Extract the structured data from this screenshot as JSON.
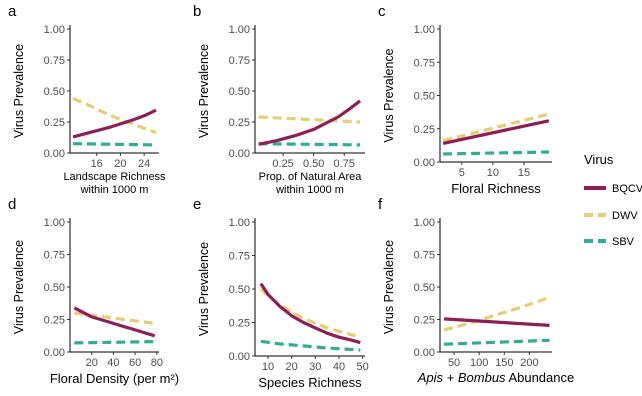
{
  "legend": {
    "title": "Virus",
    "items": [
      {
        "label": "BQCV",
        "color": "#8E1F56",
        "style": "solid"
      },
      {
        "label": "DWV",
        "color": "#E5CF72",
        "style": "dashed"
      },
      {
        "label": "SBV",
        "color": "#2FAE94",
        "style": "dashed"
      }
    ]
  },
  "chart_data": [
    {
      "type": "line",
      "panel": "a",
      "ylabel": "Virus Prevalence",
      "xlabel": [
        "Landscape Richness",
        "within 1000 m"
      ],
      "xlim": [
        11.5,
        26.5
      ],
      "xticks": [
        16,
        20,
        24
      ],
      "ylim": [
        0,
        1
      ],
      "yticks": [
        0.0,
        0.25,
        0.5,
        0.75,
        1.0
      ],
      "ytick_labels": [
        "0.00",
        "0.25",
        "0.50",
        "0.75",
        "1.00"
      ],
      "series": [
        {
          "name": "BQCV",
          "x": [
            12,
            14,
            16,
            18,
            20,
            22,
            24,
            26
          ],
          "y": [
            0.13,
            0.155,
            0.18,
            0.205,
            0.235,
            0.265,
            0.3,
            0.345
          ]
        },
        {
          "name": "DWV",
          "x": [
            12,
            14,
            16,
            18,
            20,
            22,
            24,
            26
          ],
          "y": [
            0.44,
            0.4,
            0.355,
            0.31,
            0.27,
            0.235,
            0.2,
            0.165
          ]
        },
        {
          "name": "SBV",
          "x": [
            12,
            26
          ],
          "y": [
            0.075,
            0.065
          ]
        }
      ]
    },
    {
      "type": "line",
      "panel": "b",
      "ylabel": "Virus Prevalence",
      "xlabel": [
        "Prop. of Natural Area",
        "within 1000 m"
      ],
      "xlim": [
        0.02,
        0.92
      ],
      "xticks": [
        0.25,
        0.5,
        0.75
      ],
      "xtick_labels": [
        "0.25",
        "0.50",
        "0.75"
      ],
      "ylim": [
        0,
        1
      ],
      "yticks": [
        0.0,
        0.25,
        0.5,
        0.75,
        1.0
      ],
      "ytick_labels": [
        "0.00",
        "0.25",
        "0.50",
        "0.75",
        "1.00"
      ],
      "series": [
        {
          "name": "BQCV",
          "x": [
            0.05,
            0.2,
            0.35,
            0.5,
            0.6,
            0.7,
            0.8,
            0.88
          ],
          "y": [
            0.07,
            0.1,
            0.14,
            0.19,
            0.24,
            0.29,
            0.36,
            0.42
          ]
        },
        {
          "name": "DWV",
          "x": [
            0.05,
            0.88
          ],
          "y": [
            0.29,
            0.25
          ]
        },
        {
          "name": "SBV",
          "x": [
            0.05,
            0.88
          ],
          "y": [
            0.075,
            0.065
          ]
        }
      ]
    },
    {
      "type": "line",
      "panel": "c",
      "ylabel": "Virus Prevalence",
      "xlabel": [
        "Floral Richness"
      ],
      "xlim": [
        1.5,
        19.5
      ],
      "xticks": [
        5,
        10,
        15
      ],
      "ylim": [
        0,
        1
      ],
      "yticks": [
        0.0,
        0.25,
        0.5,
        0.75,
        1.0
      ],
      "ytick_labels": [
        "0.00",
        "0.25",
        "0.50",
        "0.75",
        "1.00"
      ],
      "series": [
        {
          "name": "BQCV",
          "x": [
            2,
            19
          ],
          "y": [
            0.14,
            0.31
          ]
        },
        {
          "name": "DWV",
          "x": [
            2,
            19
          ],
          "y": [
            0.16,
            0.36
          ]
        },
        {
          "name": "SBV",
          "x": [
            2,
            19
          ],
          "y": [
            0.06,
            0.075
          ]
        }
      ]
    },
    {
      "type": "line",
      "panel": "d",
      "ylabel": "Virus Prevalence",
      "xlabel": [
        "Floral Density (per m²)"
      ],
      "xlim": [
        0,
        82
      ],
      "xticks": [
        20,
        40,
        60,
        80
      ],
      "ylim": [
        0,
        1
      ],
      "yticks": [
        0.0,
        0.25,
        0.5,
        0.75,
        1.0
      ],
      "ytick_labels": [
        "0.00",
        "0.25",
        "0.50",
        "0.75",
        "1.00"
      ],
      "series": [
        {
          "name": "BQCV",
          "x": [
            4,
            20,
            40,
            60,
            78
          ],
          "y": [
            0.34,
            0.27,
            0.22,
            0.17,
            0.125
          ]
        },
        {
          "name": "DWV",
          "x": [
            4,
            78
          ],
          "y": [
            0.3,
            0.22
          ]
        },
        {
          "name": "SBV",
          "x": [
            4,
            78
          ],
          "y": [
            0.07,
            0.08
          ]
        }
      ]
    },
    {
      "type": "line",
      "panel": "e",
      "ylabel": "Virus Prevalence",
      "xlabel": [
        "Species Richness"
      ],
      "xlim": [
        4.5,
        51
      ],
      "xticks": [
        10,
        20,
        30,
        40,
        50
      ],
      "ylim": [
        0,
        1
      ],
      "yticks": [
        0.0,
        0.25,
        0.5,
        0.75,
        1.0
      ],
      "ytick_labels": [
        "0.00",
        "0.25",
        "0.50",
        "0.75",
        "1.00"
      ],
      "series": [
        {
          "name": "BQCV",
          "x": [
            7,
            10,
            15,
            20,
            25,
            30,
            35,
            40,
            45,
            49
          ],
          "y": [
            0.54,
            0.46,
            0.37,
            0.3,
            0.25,
            0.21,
            0.17,
            0.14,
            0.12,
            0.1
          ]
        },
        {
          "name": "DWV",
          "x": [
            7,
            10,
            15,
            20,
            25,
            30,
            35,
            40,
            45,
            49
          ],
          "y": [
            0.5,
            0.45,
            0.38,
            0.33,
            0.28,
            0.245,
            0.21,
            0.185,
            0.16,
            0.145
          ]
        },
        {
          "name": "SBV",
          "x": [
            7,
            15,
            25,
            35,
            49
          ],
          "y": [
            0.11,
            0.09,
            0.075,
            0.06,
            0.045
          ]
        }
      ]
    },
    {
      "type": "line",
      "panel": "f",
      "ylabel": "Virus Prevalence",
      "xlabel": [
        "Apis + Bombus Abundance"
      ],
      "xlabel_italic": "Apis + Bombus",
      "xlabel_rest": " Abundance",
      "xlim": [
        22,
        245
      ],
      "xticks": [
        50,
        100,
        150,
        200
      ],
      "ylim": [
        0,
        1
      ],
      "yticks": [
        0.0,
        0.25,
        0.5,
        0.75,
        1.0
      ],
      "ytick_labels": [
        "0.00",
        "0.25",
        "0.50",
        "0.75",
        "1.00"
      ],
      "series": [
        {
          "name": "BQCV",
          "x": [
            30,
            240
          ],
          "y": [
            0.255,
            0.205
          ]
        },
        {
          "name": "DWV",
          "x": [
            30,
            80,
            130,
            180,
            240
          ],
          "y": [
            0.17,
            0.22,
            0.28,
            0.34,
            0.42
          ]
        },
        {
          "name": "SBV",
          "x": [
            30,
            240
          ],
          "y": [
            0.06,
            0.09
          ]
        }
      ]
    }
  ]
}
